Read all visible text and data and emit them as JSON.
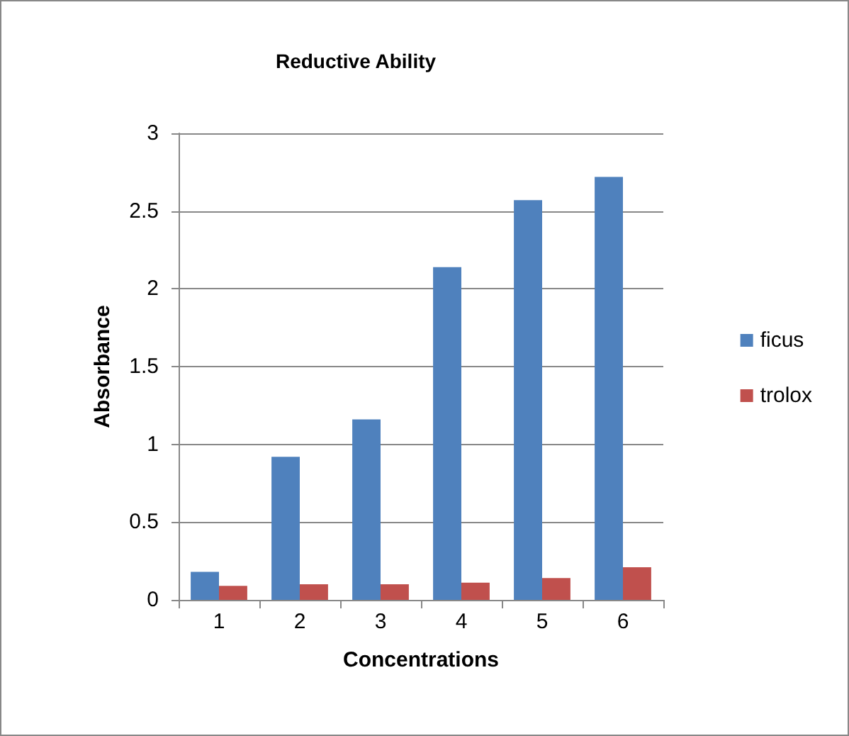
{
  "chart_data": {
    "type": "bar",
    "title": "Reductive Ability",
    "xlabel": "Concentrations",
    "ylabel": "Absorbance",
    "categories": [
      "1",
      "2",
      "3",
      "4",
      "5",
      "6"
    ],
    "series": [
      {
        "name": "ficus",
        "color": "#4f81bd",
        "values": [
          0.18,
          0.92,
          1.16,
          2.14,
          2.57,
          2.72
        ]
      },
      {
        "name": "trolox",
        "color": "#c0504d",
        "values": [
          0.09,
          0.1,
          0.1,
          0.11,
          0.14,
          0.21
        ]
      }
    ],
    "ylim": [
      0,
      3
    ],
    "yticks": [
      0,
      0.5,
      1,
      1.5,
      2,
      2.5,
      3
    ],
    "grid": "y",
    "legend": "right"
  }
}
